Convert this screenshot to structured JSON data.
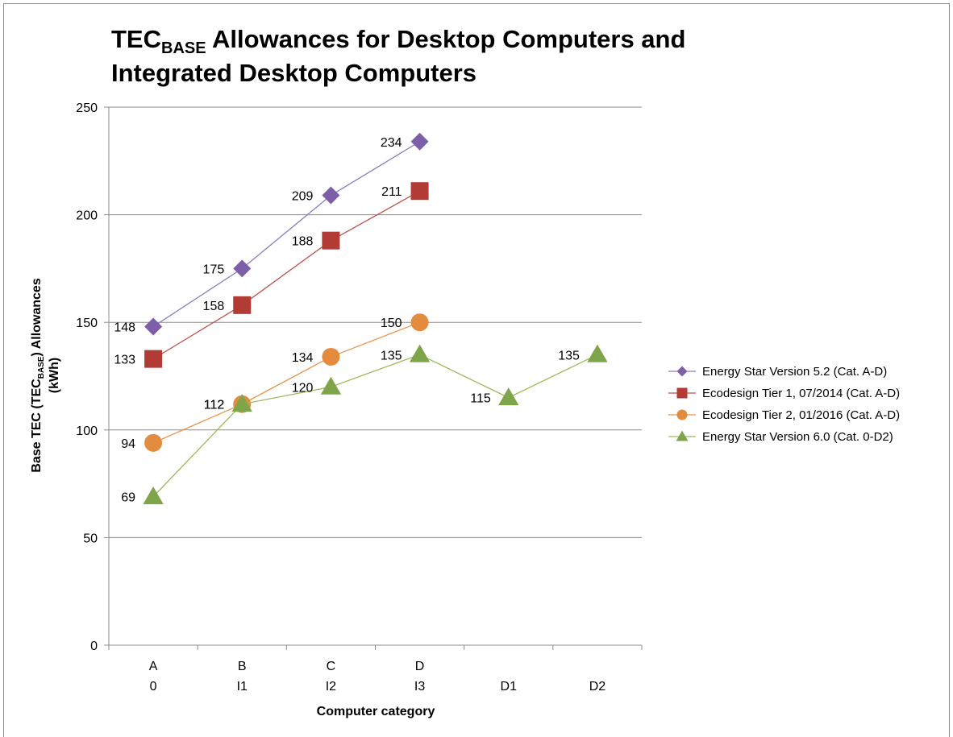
{
  "chart_data": {
    "type": "line",
    "title": {
      "main": "TEC",
      "subscript": "BASE",
      "rest_line1": " Allowances for Desktop Computers and",
      "line2": "Integrated Desktop Computers"
    },
    "xlabel": "Computer category",
    "ylabel": {
      "prefix": "Base TEC (TEC",
      "subscript": "BASE",
      "suffix": ") Allowances",
      "unit": "(kWh)"
    },
    "ylim": [
      0,
      250
    ],
    "yticks": [
      0,
      50,
      100,
      150,
      200,
      250
    ],
    "grid": "horizontal",
    "legend_position": "right",
    "categories": [
      {
        "top": "A",
        "bottom": "0"
      },
      {
        "top": "B",
        "bottom": "I1"
      },
      {
        "top": "C",
        "bottom": "I2"
      },
      {
        "top": "D",
        "bottom": "I3"
      },
      {
        "top": "",
        "bottom": "D1"
      },
      {
        "top": "",
        "bottom": "D2"
      }
    ],
    "series": [
      {
        "name": "Energy Star Version 5.2 (Cat. A-D)",
        "marker": "diamond",
        "color": "#7c5fa8",
        "line_color": "#8f7bbf",
        "values": [
          148,
          175,
          209,
          234,
          null,
          null
        ]
      },
      {
        "name": "Ecodesign Tier 1, 07/2014 (Cat. A-D)",
        "marker": "square",
        "color": "#b23b36",
        "line_color": "#c0504d",
        "values": [
          133,
          158,
          188,
          211,
          null,
          null
        ]
      },
      {
        "name": "Ecodesign Tier 2, 01/2016  (Cat. A-D)",
        "marker": "circle",
        "color": "#e38c3f",
        "line_color": "#e8954a",
        "values": [
          94,
          112,
          134,
          150,
          null,
          null
        ]
      },
      {
        "name": "Energy Star Version 6.0 (Cat. 0-D2)",
        "marker": "triangle",
        "color": "#7fa54a",
        "line_color": "#9bbb59",
        "values": [
          69,
          112,
          120,
          135,
          115,
          135
        ]
      }
    ]
  }
}
